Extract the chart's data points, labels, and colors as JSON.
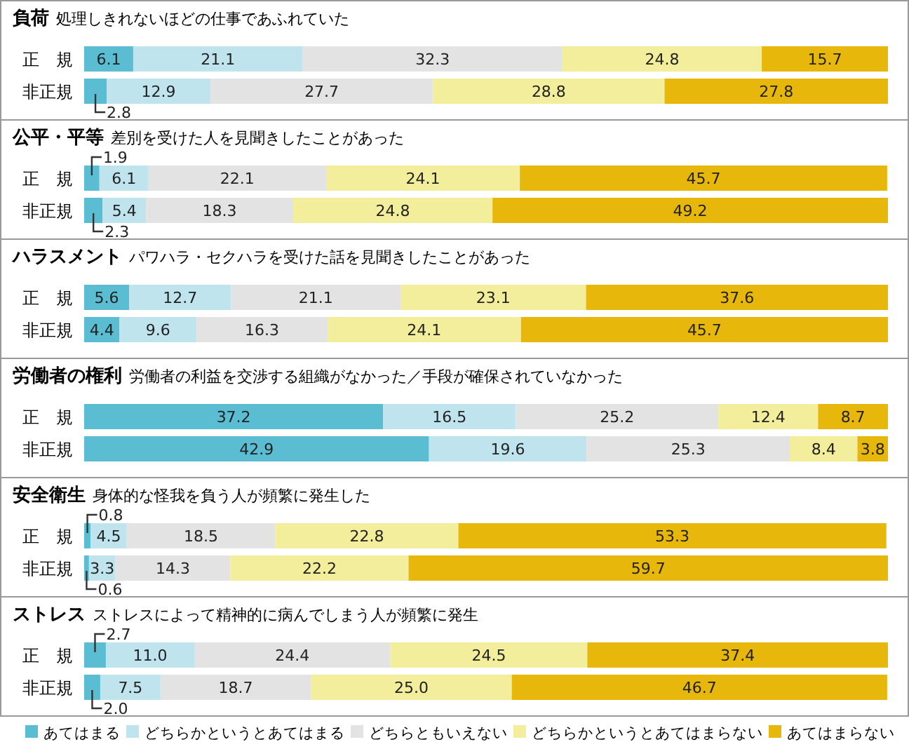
{
  "chart_data": [
    {
      "type": "bar",
      "orientation": "horizontal",
      "stacked": true,
      "legend": false,
      "title": "負荷",
      "subtitle": "処理しきれないほどの仕事であふれていた",
      "categories": [
        "正　規",
        "非正規"
      ],
      "series": [
        {
          "color": "#5bbdd1",
          "values": [
            6.1,
            2.8
          ],
          "value_labels": [
            "6.1",
            "2.8"
          ]
        },
        {
          "color": "#bfe4ee",
          "values": [
            21.1,
            12.9
          ],
          "value_labels": [
            "21.1",
            "12.9"
          ]
        },
        {
          "color": "#e3e3e3",
          "values": [
            32.3,
            27.7
          ],
          "value_labels": [
            "32.3",
            "27.7"
          ]
        },
        {
          "color": "#f2ee9b",
          "values": [
            24.8,
            28.8
          ],
          "value_labels": [
            "24.8",
            "28.8"
          ]
        },
        {
          "color": "#e8b70c",
          "values": [
            15.7,
            27.8
          ],
          "value_labels": [
            "15.7",
            "27.8"
          ]
        }
      ]
    },
    {
      "type": "bar",
      "orientation": "horizontal",
      "stacked": true,
      "legend": false,
      "title": "公平・平等",
      "subtitle": "差別を受けた人を見聞きしたことがあった",
      "categories": [
        "正　規",
        "非正規"
      ],
      "series": [
        {
          "color": "#5bbdd1",
          "values": [
            1.9,
            2.3
          ],
          "value_labels": [
            "1.9",
            "2.3"
          ]
        },
        {
          "color": "#bfe4ee",
          "values": [
            6.1,
            5.4
          ],
          "value_labels": [
            "6.1",
            "5.4"
          ]
        },
        {
          "color": "#e3e3e3",
          "values": [
            22.1,
            18.3
          ],
          "value_labels": [
            "22.1",
            "18.3"
          ]
        },
        {
          "color": "#f2ee9b",
          "values": [
            24.1,
            24.8
          ],
          "value_labels": [
            "24.1",
            "24.8"
          ]
        },
        {
          "color": "#e8b70c",
          "values": [
            45.7,
            49.2
          ],
          "value_labels": [
            "45.7",
            "49.2"
          ]
        }
      ]
    },
    {
      "type": "bar",
      "orientation": "horizontal",
      "stacked": true,
      "legend": false,
      "title": "ハラスメント",
      "subtitle": "パワハラ・セクハラを受けた話を見聞きしたことがあった",
      "categories": [
        "正　規",
        "非正規"
      ],
      "series": [
        {
          "color": "#5bbdd1",
          "values": [
            5.6,
            4.4
          ],
          "value_labels": [
            "5.6",
            "4.4"
          ]
        },
        {
          "color": "#bfe4ee",
          "values": [
            12.7,
            9.6
          ],
          "value_labels": [
            "12.7",
            "9.6"
          ]
        },
        {
          "color": "#e3e3e3",
          "values": [
            21.1,
            16.3
          ],
          "value_labels": [
            "21.1",
            "16.3"
          ]
        },
        {
          "color": "#f2ee9b",
          "values": [
            23.1,
            24.1
          ],
          "value_labels": [
            "23.1",
            "24.1"
          ]
        },
        {
          "color": "#e8b70c",
          "values": [
            37.6,
            45.7
          ],
          "value_labels": [
            "37.6",
            "45.7"
          ]
        }
      ]
    },
    {
      "type": "bar",
      "orientation": "horizontal",
      "stacked": true,
      "legend": false,
      "title": "労働者の権利",
      "subtitle": "労働者の利益を交渉する組織がなかった／手段が確保されていなかった",
      "categories": [
        "正　規",
        "非正規"
      ],
      "series": [
        {
          "color": "#5bbdd1",
          "values": [
            37.2,
            42.9
          ],
          "value_labels": [
            "37.2",
            "42.9"
          ]
        },
        {
          "color": "#bfe4ee",
          "values": [
            16.5,
            19.6
          ],
          "value_labels": [
            "16.5",
            "19.6"
          ]
        },
        {
          "color": "#e3e3e3",
          "values": [
            25.2,
            25.3
          ],
          "value_labels": [
            "25.2",
            "25.3"
          ]
        },
        {
          "color": "#f2ee9b",
          "values": [
            12.4,
            8.4
          ],
          "value_labels": [
            "12.4",
            "8.4"
          ]
        },
        {
          "color": "#e8b70c",
          "values": [
            8.7,
            3.8
          ],
          "value_labels": [
            "8.7",
            "3.8"
          ]
        }
      ]
    },
    {
      "type": "bar",
      "orientation": "horizontal",
      "stacked": true,
      "legend": false,
      "title": "安全衛生",
      "subtitle": "身体的な怪我を負う人が頻繁に発生した",
      "categories": [
        "正　規",
        "非正規"
      ],
      "series": [
        {
          "color": "#5bbdd1",
          "values": [
            0.8,
            0.6
          ],
          "value_labels": [
            "0.8",
            "0.6"
          ]
        },
        {
          "color": "#bfe4ee",
          "values": [
            4.5,
            3.3
          ],
          "value_labels": [
            "4.5",
            "3.3"
          ]
        },
        {
          "color": "#e3e3e3",
          "values": [
            18.5,
            14.3
          ],
          "value_labels": [
            "18.5",
            "14.3"
          ]
        },
        {
          "color": "#f2ee9b",
          "values": [
            22.8,
            22.2
          ],
          "value_labels": [
            "22.8",
            "22.2"
          ]
        },
        {
          "color": "#e8b70c",
          "values": [
            53.3,
            59.7
          ],
          "value_labels": [
            "53.3",
            "59.7"
          ]
        }
      ]
    },
    {
      "type": "bar",
      "orientation": "horizontal",
      "stacked": true,
      "legend": "bottom",
      "title": "ストレス",
      "subtitle": "ストレスによって精神的に病んでしまう人が頻繁に発生",
      "categories": [
        "正　規",
        "非正規"
      ],
      "series": [
        {
          "name": "あてはまる",
          "color": "#5bbdd1",
          "values": [
            2.7,
            2.0
          ],
          "value_labels": [
            "2.7",
            "2.0"
          ]
        },
        {
          "name": "どちらかというとあてはまる",
          "color": "#bfe4ee",
          "values": [
            11.0,
            7.5
          ],
          "value_labels": [
            "11.0",
            "7.5"
          ]
        },
        {
          "name": "どちらともいえない",
          "color": "#e3e3e3",
          "values": [
            24.4,
            18.7
          ],
          "value_labels": [
            "24.4",
            "18.7"
          ]
        },
        {
          "name": "どちらかというとあてはまらない",
          "color": "#f2ee9b",
          "values": [
            24.5,
            25.0
          ],
          "value_labels": [
            "24.5",
            "25.0"
          ]
        },
        {
          "name": "あてはまらない",
          "color": "#e8b70c",
          "values": [
            37.4,
            46.7
          ],
          "value_labels": [
            "37.4",
            "46.7"
          ]
        }
      ]
    }
  ]
}
